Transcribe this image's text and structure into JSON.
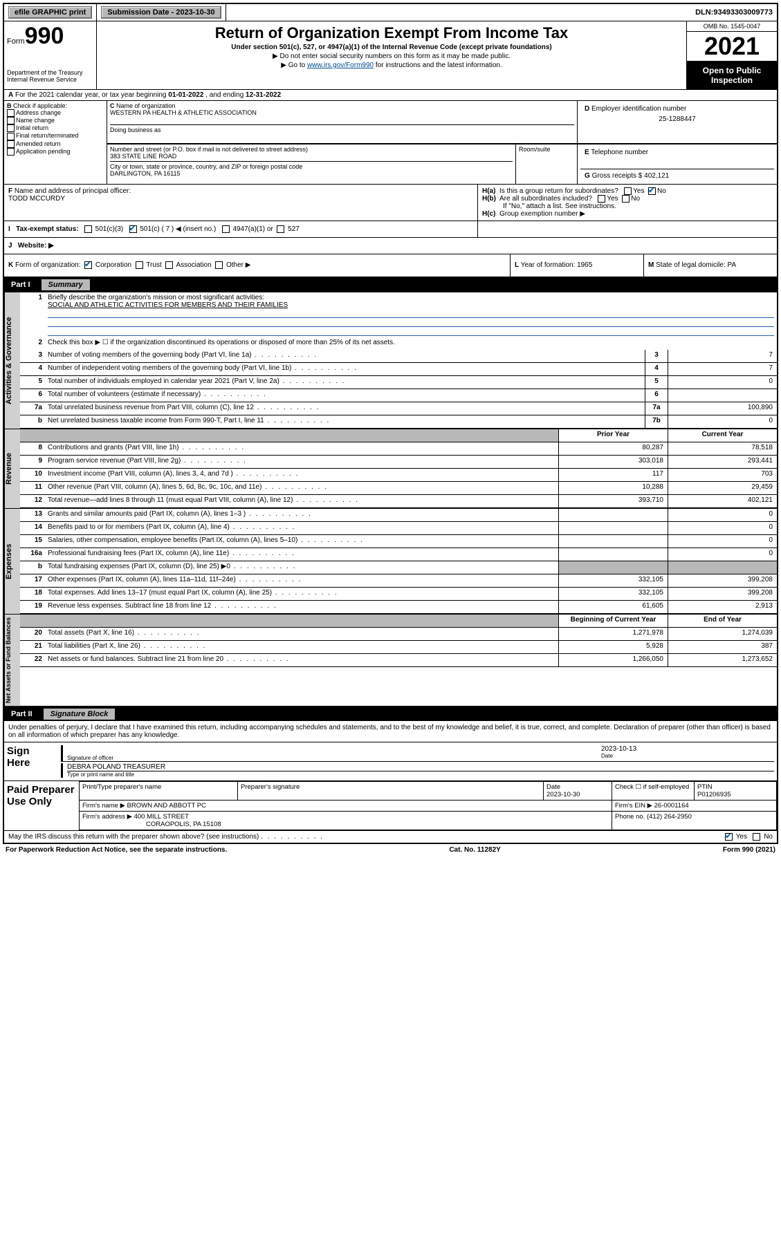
{
  "topbar": {
    "efile": "efile GRAPHIC print",
    "subdate_label": "Submission Date - ",
    "subdate": "2023-10-30",
    "dln_label": "DLN: ",
    "dln": "93493303009773"
  },
  "header": {
    "form_prefix": "Form",
    "form_number": "990",
    "dept": "Department of the Treasury\nInternal Revenue Service",
    "title": "Return of Organization Exempt From Income Tax",
    "subtitle": "Under section 501(c), 527, or 4947(a)(1) of the Internal Revenue Code (except private foundations)",
    "note1": "▶ Do not enter social security numbers on this form as it may be made public.",
    "note2_pre": "▶ Go to ",
    "note2_link": "www.irs.gov/Form990",
    "note2_post": " for instructions and the latest information.",
    "omb": "OMB No. 1545-0047",
    "year": "2021",
    "open": "Open to Public Inspection"
  },
  "rowA": {
    "text_pre": "For the 2021 calendar year, or tax year beginning ",
    "begin": "01-01-2022",
    "mid": " , and ending ",
    "end": "12-31-2022"
  },
  "checkB": {
    "label": "Check if applicable:",
    "items": [
      "Address change",
      "Name change",
      "Initial return",
      "Final return/terminated",
      "Amended return",
      "Application pending"
    ]
  },
  "boxC": {
    "name_label": "Name of organization",
    "name": "WESTERN PA HEALTH & ATHLETIC ASSOCIATION",
    "dba_label": "Doing business as",
    "addr_label": "Number and street (or P.O. box if mail is not delivered to street address)",
    "addr": "383 STATE LINE ROAD",
    "room_label": "Room/suite",
    "city_label": "City or town, state or province, country, and ZIP or foreign postal code",
    "city": "DARLINGTON, PA  16115"
  },
  "boxD": {
    "label": "Employer identification number",
    "val": "25-1288447"
  },
  "boxE": {
    "label": "Telephone number",
    "val": ""
  },
  "boxG": {
    "label": "Gross receipts $ ",
    "val": "402,121"
  },
  "boxF": {
    "label": "Name and address of principal officer:",
    "val": "TODD MCCURDY"
  },
  "boxH": {
    "a_label": "Is this a group return for subordinates?",
    "a_yes": "Yes",
    "a_no": "No",
    "b_label": "Are all subordinates included?",
    "b_note": "If \"No,\" attach a list. See instructions.",
    "c_label": "Group exemption number ▶"
  },
  "rowI": {
    "label": "Tax-exempt status:",
    "opts": [
      "501(c)(3)",
      "501(c) ( 7 ) ◀ (insert no.)",
      "4947(a)(1) or",
      "527"
    ]
  },
  "rowJ": {
    "label": "Website: ▶"
  },
  "rowK": {
    "label": "Form of organization:",
    "opts": [
      "Corporation",
      "Trust",
      "Association",
      "Other ▶"
    ],
    "L_label": "Year of formation: ",
    "L_val": "1965",
    "M_label": "State of legal domicile: ",
    "M_val": "PA"
  },
  "part1": {
    "num": "Part I",
    "title": "Summary"
  },
  "sections": {
    "gov": "Activities & Governance",
    "rev": "Revenue",
    "exp": "Expenses",
    "net": "Net Assets or Fund Balances"
  },
  "summary": {
    "q1": "Briefly describe the organization's mission or most significant activities:",
    "mission": "SOCIAL AND ATHLETIC ACTIVITIES FOR MEMBERS AND THEIR FAMILIES",
    "q2": "Check this box ▶ ☐  if the organization discontinued its operations or disposed of more than 25% of its net assets.",
    "rows_gov": [
      {
        "n": "3",
        "d": "Number of voting members of the governing body (Part VI, line 1a)",
        "box": "3",
        "v": "7"
      },
      {
        "n": "4",
        "d": "Number of independent voting members of the governing body (Part VI, line 1b)",
        "box": "4",
        "v": "7"
      },
      {
        "n": "5",
        "d": "Total number of individuals employed in calendar year 2021 (Part V, line 2a)",
        "box": "5",
        "v": "0"
      },
      {
        "n": "6",
        "d": "Total number of volunteers (estimate if necessary)",
        "box": "6",
        "v": ""
      },
      {
        "n": "7a",
        "d": "Total unrelated business revenue from Part VIII, column (C), line 12",
        "box": "7a",
        "v": "100,890"
      },
      {
        "n": "b",
        "d": "Net unrelated business taxable income from Form 990-T, Part I, line 11",
        "box": "7b",
        "v": "0"
      }
    ],
    "col_hdr": {
      "prior": "Prior Year",
      "curr": "Current Year"
    },
    "rows_rev": [
      {
        "n": "8",
        "d": "Contributions and grants (Part VIII, line 1h)",
        "p": "80,287",
        "c": "78,518"
      },
      {
        "n": "9",
        "d": "Program service revenue (Part VIII, line 2g)",
        "p": "303,018",
        "c": "293,441"
      },
      {
        "n": "10",
        "d": "Investment income (Part VIII, column (A), lines 3, 4, and 7d )",
        "p": "117",
        "c": "703"
      },
      {
        "n": "11",
        "d": "Other revenue (Part VIII, column (A), lines 5, 6d, 8c, 9c, 10c, and 11e)",
        "p": "10,288",
        "c": "29,459"
      },
      {
        "n": "12",
        "d": "Total revenue—add lines 8 through 11 (must equal Part VIII, column (A), line 12)",
        "p": "393,710",
        "c": "402,121"
      }
    ],
    "rows_exp": [
      {
        "n": "13",
        "d": "Grants and similar amounts paid (Part IX, column (A), lines 1–3 )",
        "p": "",
        "c": "0"
      },
      {
        "n": "14",
        "d": "Benefits paid to or for members (Part IX, column (A), line 4)",
        "p": "",
        "c": "0"
      },
      {
        "n": "15",
        "d": "Salaries, other compensation, employee benefits (Part IX, column (A), lines 5–10)",
        "p": "",
        "c": "0"
      },
      {
        "n": "16a",
        "d": "Professional fundraising fees (Part IX, column (A), line 11e)",
        "p": "",
        "c": "0"
      },
      {
        "n": "b",
        "d": "Total fundraising expenses (Part IX, column (D), line 25) ▶0",
        "p": "GREY",
        "c": "GREY"
      },
      {
        "n": "17",
        "d": "Other expenses (Part IX, column (A), lines 11a–11d, 11f–24e)",
        "p": "332,105",
        "c": "399,208"
      },
      {
        "n": "18",
        "d": "Total expenses. Add lines 13–17 (must equal Part IX, column (A), line 25)",
        "p": "332,105",
        "c": "399,208"
      },
      {
        "n": "19",
        "d": "Revenue less expenses. Subtract line 18 from line 12",
        "p": "61,605",
        "c": "2,913"
      }
    ],
    "col_hdr2": {
      "prior": "Beginning of Current Year",
      "curr": "End of Year"
    },
    "rows_net": [
      {
        "n": "20",
        "d": "Total assets (Part X, line 16)",
        "p": "1,271,978",
        "c": "1,274,039"
      },
      {
        "n": "21",
        "d": "Total liabilities (Part X, line 26)",
        "p": "5,928",
        "c": "387"
      },
      {
        "n": "22",
        "d": "Net assets or fund balances. Subtract line 21 from line 20",
        "p": "1,266,050",
        "c": "1,273,652"
      }
    ]
  },
  "part2": {
    "num": "Part II",
    "title": "Signature Block"
  },
  "sig": {
    "jurat": "Under penalties of perjury, I declare that I have examined this return, including accompanying schedules and statements, and to the best of my knowledge and belief, it is true, correct, and complete. Declaration of preparer (other than officer) is based on all information of which preparer has any knowledge.",
    "sign_here": "Sign Here",
    "sig_officer": "Signature of officer",
    "sig_date": "2023-10-13",
    "date_label": "Date",
    "officer_name": "DEBRA POLAND  TREASURER",
    "name_title_label": "Type or print name and title",
    "paid": "Paid Preparer Use Only",
    "prep_name_hdr": "Print/Type preparer's name",
    "prep_sig_hdr": "Preparer's signature",
    "prep_date_hdr": "Date",
    "prep_date": "2023-10-30",
    "check_self": "Check ☐ if self-employed",
    "ptin_hdr": "PTIN",
    "ptin": "P01206935",
    "firm_name_label": "Firm's name    ▶ ",
    "firm_name": "BROWN AND ABBOTT PC",
    "firm_ein_label": "Firm's EIN ▶ ",
    "firm_ein": "26-0001164",
    "firm_addr_label": "Firm's address ▶ ",
    "firm_addr1": "400 MILL STREET",
    "firm_addr2": "CORAOPOLIS, PA  15108",
    "phone_label": "Phone no. ",
    "phone": "(412) 264-2950",
    "may_irs": "May the IRS discuss this return with the preparer shown above? (see instructions)",
    "yes": "Yes",
    "no": "No"
  },
  "footer": {
    "left": "For Paperwork Reduction Act Notice, see the separate instructions.",
    "mid": "Cat. No. 11282Y",
    "right": "Form 990 (2021)"
  }
}
